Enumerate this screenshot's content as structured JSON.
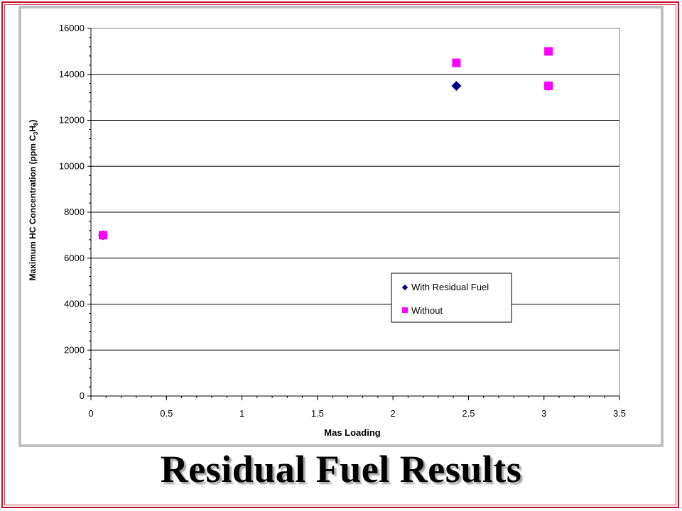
{
  "slide": {
    "title": "Residual Fuel Results"
  },
  "chart_data": {
    "type": "scatter",
    "xlabel": "Mas Loading",
    "ylabel": {
      "prefix": "Maximum HC Concentration (ppm C",
      "sub1": "3",
      "mid": "H",
      "sub2": "8",
      "suffix": ")"
    },
    "xlim": [
      0,
      3.5
    ],
    "ylim": [
      0,
      16000
    ],
    "x_ticks": [
      "0",
      "0.5",
      "1",
      "1.5",
      "2",
      "2.5",
      "3",
      "3.5"
    ],
    "y_ticks": [
      "0",
      "2000",
      "4000",
      "6000",
      "8000",
      "10000",
      "12000",
      "14000",
      "16000"
    ],
    "grid": "horizontal",
    "legend_position": "center-right",
    "series": [
      {
        "name": "With Residual Fuel",
        "marker": "diamond",
        "color": "#000080",
        "points": [
          {
            "x": 0.08,
            "y": 7000
          },
          {
            "x": 2.42,
            "y": 13500
          },
          {
            "x": 3.03,
            "y": 13500
          }
        ]
      },
      {
        "name": "Without",
        "marker": "square",
        "color": "#ff00ff",
        "points": [
          {
            "x": 0.08,
            "y": 7000
          },
          {
            "x": 2.42,
            "y": 14500
          },
          {
            "x": 3.03,
            "y": 15000
          },
          {
            "x": 3.03,
            "y": 13500
          }
        ]
      }
    ]
  }
}
